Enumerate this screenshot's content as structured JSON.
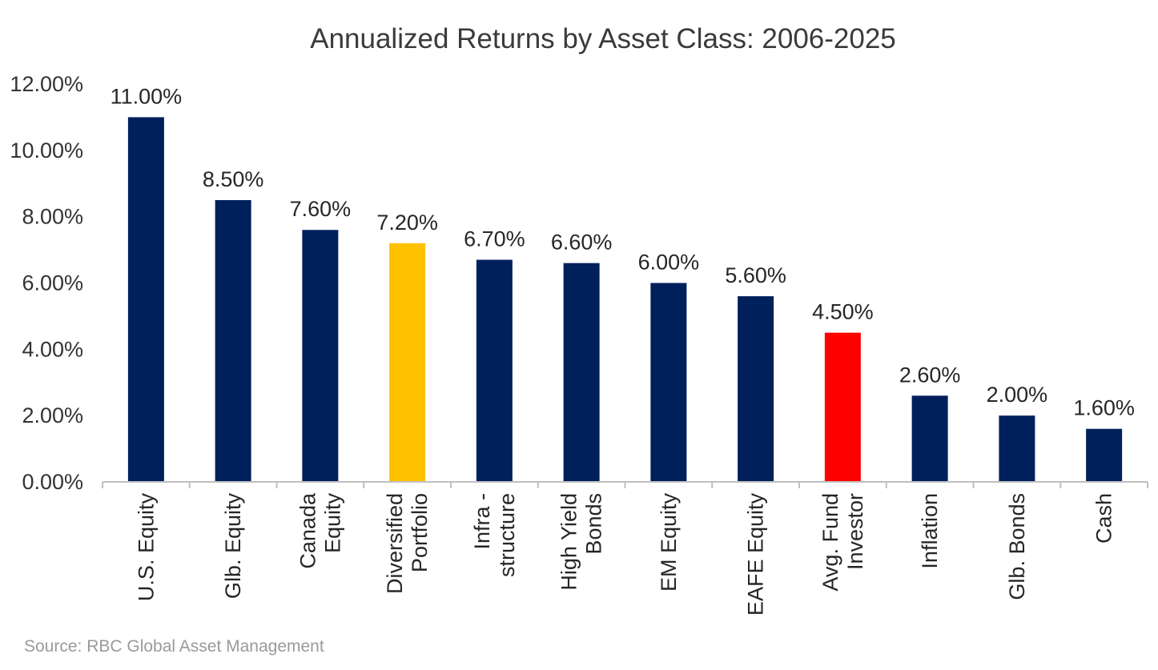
{
  "chart_data": {
    "type": "bar",
    "title": "Annualized Returns by Asset Class:  2006-2025",
    "xlabel": "",
    "ylabel": "",
    "ylim": [
      0,
      12
    ],
    "yticks": [
      "0.00%",
      "2.00%",
      "4.00%",
      "6.00%",
      "8.00%",
      "10.00%",
      "12.00%"
    ],
    "grid": false,
    "legend": "none",
    "categories": [
      [
        "U.S. Equity"
      ],
      [
        "Glb. Equity"
      ],
      [
        "Canada",
        "Equity"
      ],
      [
        "Diversified",
        "Portfolio"
      ],
      [
        "Infra -",
        "structure"
      ],
      [
        "High Yield",
        "Bonds"
      ],
      [
        "EM Equity"
      ],
      [
        "EAFE Equity"
      ],
      [
        "Avg. Fund",
        "Investor"
      ],
      [
        "Inflation"
      ],
      [
        "Glb. Bonds"
      ],
      [
        "Cash"
      ]
    ],
    "values": [
      11.0,
      8.5,
      7.6,
      7.2,
      6.7,
      6.6,
      6.0,
      5.6,
      4.5,
      2.6,
      2.0,
      1.6
    ],
    "data_labels": [
      "11.00%",
      "8.50%",
      "7.60%",
      "7.20%",
      "6.70%",
      "6.60%",
      "6.00%",
      "5.60%",
      "4.50%",
      "2.60%",
      "2.00%",
      "1.60%"
    ],
    "colors": [
      "#00205b",
      "#00205b",
      "#00205b",
      "#ffc000",
      "#00205b",
      "#00205b",
      "#00205b",
      "#00205b",
      "#ff0000",
      "#00205b",
      "#00205b",
      "#00205b"
    ],
    "axis_color": "#bfbfbf"
  },
  "footer": {
    "source": "Source: RBC Global Asset Management"
  }
}
